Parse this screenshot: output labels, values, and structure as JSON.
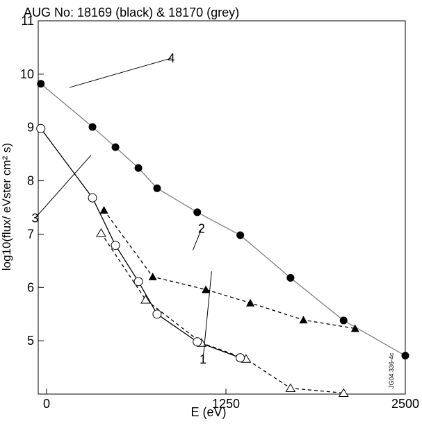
{
  "chart_data": {
    "type": "scatter",
    "title": "AUG No: 18169 (black) & 18170 (grey)",
    "xlabel": "E (eV)",
    "ylabel": "log10(flux/ eVster cm² s)",
    "xlim": [
      -50,
      2500
    ],
    "ylim": [
      4,
      11
    ],
    "xticks": [
      0,
      1250,
      2500
    ],
    "xtick_labels": [
      "0",
      "1250",
      "2500"
    ],
    "yticks": [
      5,
      6,
      7,
      8,
      9,
      10,
      11
    ],
    "ytick_labels": [
      "5",
      "6",
      "7",
      "8",
      "9",
      "10",
      "11"
    ],
    "grid": false,
    "legend": "none",
    "series": [
      {
        "label": "1",
        "marker": "open-triangle",
        "line": "dashed",
        "color": "#000000",
        "x": [
          380,
          690,
          1080,
          1390,
          1700,
          2070
        ],
        "y": [
          7.02,
          5.77,
          4.96,
          4.66,
          4.11,
          4.02
        ]
      },
      {
        "label": "2",
        "marker": "filled-triangle",
        "line": "dashed",
        "color": "#000000",
        "x": [
          400,
          740,
          1110,
          1420,
          1790,
          2150
        ],
        "y": [
          7.45,
          6.2,
          5.96,
          5.71,
          5.39,
          5.23
        ]
      },
      {
        "label": "3",
        "marker": "open-circle",
        "line": "solid",
        "color": "#000000",
        "x": [
          -40,
          320,
          480,
          640,
          770,
          1050,
          1350
        ],
        "y": [
          8.98,
          7.68,
          6.79,
          6.11,
          5.5,
          4.98,
          4.68
        ]
      },
      {
        "label": "4",
        "marker": "filled-circle",
        "line": "solid",
        "color": "#808080",
        "x": [
          -40,
          320,
          480,
          640,
          770,
          1050,
          1350,
          1700,
          2070,
          2500
        ],
        "y": [
          9.82,
          9.01,
          8.63,
          8.24,
          7.86,
          7.41,
          6.98,
          6.18,
          5.38,
          4.72
        ]
      }
    ],
    "annotations": [
      {
        "text": "1",
        "x": 1090,
        "y": 4.65,
        "target": [
          1150,
          6.3
        ]
      },
      {
        "text": "2",
        "x": 1080,
        "y": 7.1,
        "target": [
          1020,
          6.7
        ]
      },
      {
        "text": "3",
        "x": -80,
        "y": 7.3,
        "target": [
          310,
          8.48
        ]
      },
      {
        "text": "4",
        "x": 870,
        "y": 10.3,
        "target": [
          160,
          9.75
        ]
      }
    ],
    "credit": "JG04.336-4c"
  }
}
